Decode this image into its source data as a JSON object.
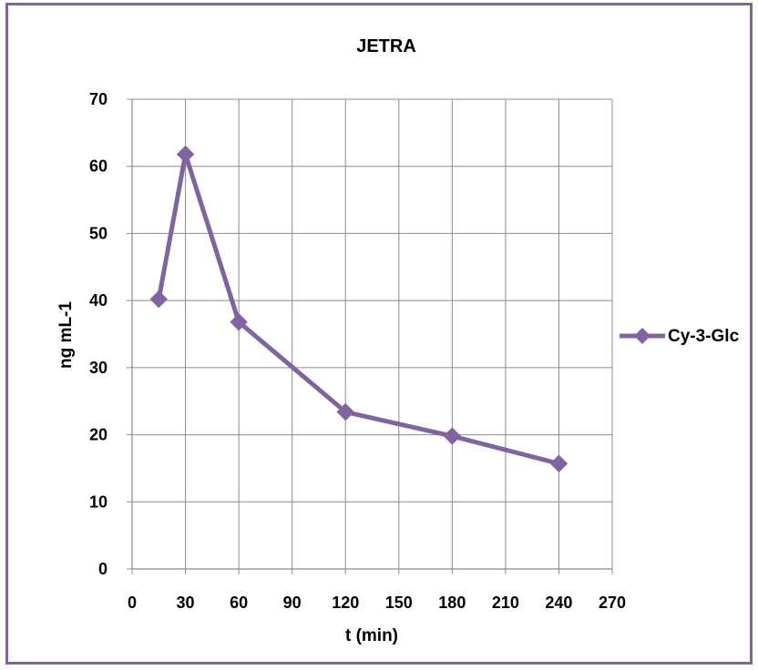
{
  "chart_data": {
    "type": "line",
    "title": "JETRA",
    "xlabel": "t (min)",
    "ylabel": "ng mL-1",
    "xlim": [
      0,
      270
    ],
    "ylim": [
      0,
      70
    ],
    "x_ticks": [
      "0",
      "30",
      "60",
      "90",
      "120",
      "150",
      "180",
      "210",
      "240",
      "270"
    ],
    "y_ticks": [
      "0",
      "10",
      "20",
      "30",
      "40",
      "50",
      "60",
      "70"
    ],
    "grid": true,
    "legend_position": "right",
    "series": [
      {
        "name": "Cy-3-Glc",
        "color": "#8064a2",
        "marker": "diamond",
        "x": [
          15,
          30,
          60,
          120,
          180,
          240
        ],
        "y": [
          40.2,
          61.8,
          36.8,
          23.4,
          19.8,
          15.7
        ]
      }
    ]
  }
}
